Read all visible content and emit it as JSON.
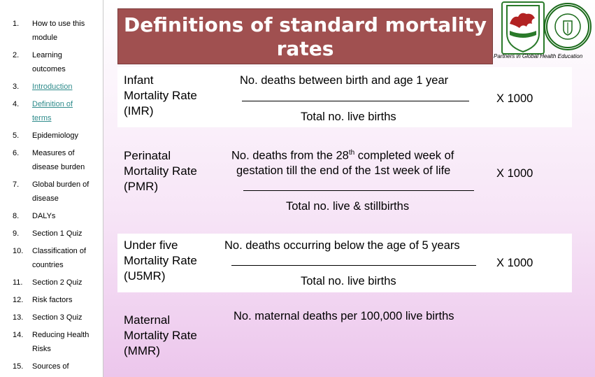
{
  "sidebar": {
    "items": [
      {
        "num": "1.",
        "lines": [
          "How to use this",
          "module"
        ],
        "link": false
      },
      {
        "num": "2.",
        "lines": [
          "Learning",
          "outcomes"
        ],
        "link": false
      },
      {
        "num": "3.",
        "lines": [
          "Introduction"
        ],
        "link": true
      },
      {
        "num": "4.",
        "lines": [
          "Definition of",
          "terms"
        ],
        "link": true
      },
      {
        "num": "5.",
        "lines": [
          "Epidemiology"
        ],
        "link": false
      },
      {
        "num": "6.",
        "lines": [
          "Measures of",
          "disease burden"
        ],
        "link": false
      },
      {
        "num": "7.",
        "lines": [
          "Global burden of",
          "disease"
        ],
        "link": false
      },
      {
        "num": "8.",
        "lines": [
          "DALYs"
        ],
        "link": false
      },
      {
        "num": "9.",
        "lines": [
          "Section 1 Quiz"
        ],
        "link": false
      },
      {
        "num": "10.",
        "lines": [
          "Classification of",
          "countries"
        ],
        "link": false
      },
      {
        "num": "11.",
        "lines": [
          "Section 2 Quiz"
        ],
        "link": false
      },
      {
        "num": "12.",
        "lines": [
          "Risk factors"
        ],
        "link": false
      },
      {
        "num": "13.",
        "lines": [
          "Section 3 Quiz"
        ],
        "link": false
      },
      {
        "num": "14.",
        "lines": [
          "Reducing Health",
          "Risks"
        ],
        "link": false
      },
      {
        "num": "15.",
        "lines": [
          "Sources of"
        ],
        "link": false
      }
    ]
  },
  "header": {
    "title_line1": "Definitions of standard mortality",
    "title_line2": "rates",
    "partners": "Partners in Global Health Education",
    "logo_dragon_icon": "dragon-crest-icon",
    "logo_college_icon": "college-seal-icon"
  },
  "definitions": [
    {
      "term": [
        "Infant",
        "Mortality Rate",
        "(IMR)"
      ],
      "numerator": "No. deaths between birth and age 1 year",
      "denominator": "Total no. live births",
      "multiplier": "X 1000"
    },
    {
      "term": [
        "Perinatal",
        "Mortality Rate",
        "(PMR)"
      ],
      "numerator_pre": "No. deaths from the 28",
      "numerator_sup": "th",
      "numerator_post": " completed week of",
      "numerator_line2": "gestation till the end of the 1st week of life",
      "denominator": "Total no. live & stillbirths",
      "multiplier": "X 1000"
    },
    {
      "term": [
        "Under five",
        "Mortality Rate",
        "(U5MR)"
      ],
      "numerator": "No. deaths occurring below the age of 5 years",
      "denominator": "Total no. live births",
      "multiplier": "X  1000"
    },
    {
      "term": [
        "Maternal",
        "Mortality Rate",
        "(MMR)"
      ],
      "numerator": "No. maternal deaths per 100,000 live births"
    }
  ],
  "colors": {
    "banner": "#a05050",
    "link": "#2e8b8b",
    "background_bottom": "#ecc6ec"
  }
}
